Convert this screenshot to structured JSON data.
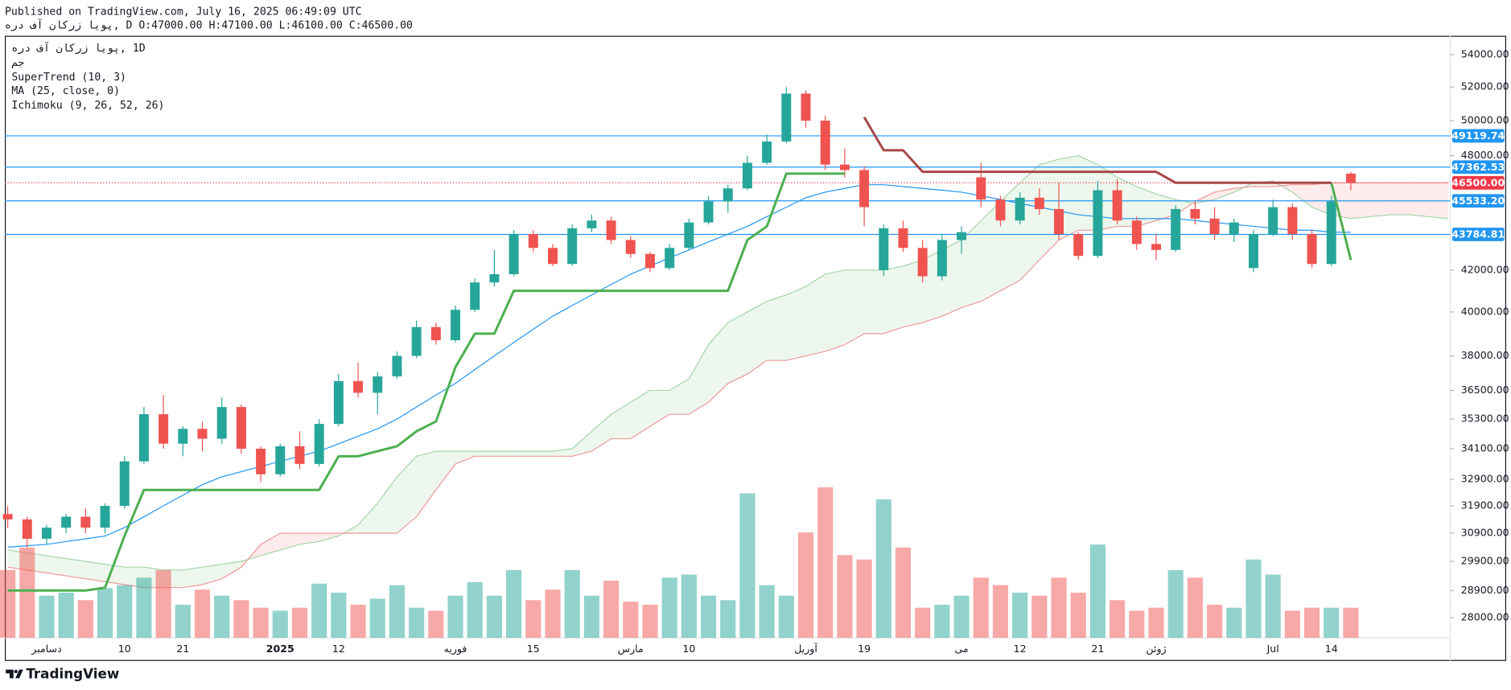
{
  "chart_data": {
    "type": "candlestick",
    "published": "Published on TradingView.com, July 16, 2025 06:49:09 UTC",
    "symbol_line": "هرد فآ ناکرز ایوپ, D O:47000.00 H:47100.00 L:46100.00 C:46500.00",
    "legend": [
      "هرد فآ ناکرز ایوپ, 1D",
      "مج",
      "SuperTrend (10, 3)",
      "MA (25, close, 0)",
      "Ichimoku (9, 26, 52, 26)"
    ],
    "brand": "TradingView",
    "categories": [
      null,
      null,
      "دسامبر",
      null,
      null,
      null,
      "10",
      null,
      null,
      "21",
      null,
      null,
      null,
      null,
      "2025",
      null,
      null,
      "12",
      null,
      null,
      null,
      null,
      null,
      "فوریه",
      null,
      null,
      null,
      "15",
      null,
      null,
      null,
      null,
      "مارس",
      null,
      null,
      "10",
      null,
      null,
      null,
      null,
      null,
      "آوریل",
      null,
      null,
      "19",
      null,
      null,
      null,
      null,
      "می",
      null,
      null,
      "12",
      null,
      null,
      null,
      "21",
      null,
      null,
      "ژوئن",
      null,
      null,
      null,
      null,
      null,
      "Jul",
      null,
      null,
      "14",
      null
    ],
    "open": [
      31600,
      31400,
      30700,
      31100,
      31500,
      31100,
      31900,
      33600,
      35500,
      34300,
      34900,
      34500,
      35800,
      34100,
      33100,
      34200,
      33500,
      35100,
      36900,
      36400,
      37100,
      38000,
      39300,
      38700,
      40100,
      41400,
      41800,
      43800,
      43100,
      42300,
      44100,
      44500,
      43500,
      42800,
      42100,
      43100,
      44400,
      45500,
      46200,
      47600,
      48800,
      51600,
      50000,
      47500,
      47200,
      42000,
      44100,
      43100,
      41700,
      43500,
      46800,
      45600,
      44500,
      45700,
      45100,
      43800,
      42700,
      46100,
      44500,
      43300,
      43000,
      45100,
      44600,
      43800,
      42100,
      43800,
      45200,
      43800,
      42300,
      47000
    ],
    "high": [
      31900,
      31500,
      31200,
      31600,
      31800,
      32000,
      33800,
      35800,
      36300,
      35000,
      35200,
      36200,
      35900,
      34200,
      34300,
      34800,
      35300,
      37200,
      37700,
      37300,
      38200,
      39600,
      39500,
      40300,
      41600,
      43000,
      44000,
      44000,
      43300,
      44300,
      44800,
      44700,
      43700,
      42900,
      43300,
      44600,
      45800,
      46400,
      48000,
      49200,
      52000,
      51800,
      50300,
      48400,
      47400,
      44300,
      44500,
      43500,
      43800,
      44200,
      47600,
      45800,
      46000,
      46200,
      46500,
      43900,
      46600,
      46700,
      44700,
      43800,
      45300,
      45500,
      45200,
      44600,
      44000,
      45600,
      45400,
      44000,
      45800,
      47100
    ],
    "low": [
      31100,
      30400,
      30500,
      30900,
      30900,
      30900,
      31800,
      33500,
      34100,
      33800,
      34000,
      34300,
      33900,
      32800,
      33000,
      33300,
      33400,
      35000,
      36200,
      35500,
      37000,
      37900,
      38500,
      38600,
      40000,
      41200,
      41700,
      42900,
      42200,
      42200,
      43900,
      43300,
      42600,
      41900,
      42000,
      43000,
      44300,
      44900,
      46100,
      47500,
      48700,
      49600,
      47200,
      46800,
      44200,
      41700,
      42900,
      41400,
      41500,
      42800,
      45200,
      44200,
      44300,
      44800,
      43500,
      42500,
      42600,
      44300,
      43000,
      42500,
      42900,
      44300,
      43500,
      43400,
      41900,
      43700,
      43500,
      42100,
      42200,
      46100
    ],
    "close": [
      31400,
      30700,
      31100,
      31500,
      31100,
      31900,
      33600,
      35500,
      34300,
      34900,
      34500,
      35800,
      34100,
      33100,
      34200,
      33500,
      35100,
      36900,
      36400,
      37100,
      38000,
      39300,
      38700,
      40100,
      41400,
      41800,
      43800,
      43100,
      42300,
      44100,
      44500,
      43500,
      42800,
      42100,
      43100,
      44400,
      45500,
      46200,
      47600,
      48800,
      51600,
      50000,
      47500,
      47200,
      45200,
      44100,
      43100,
      41700,
      43500,
      43900,
      45600,
      44500,
      45700,
      45100,
      43800,
      42700,
      46100,
      44500,
      43300,
      43000,
      45100,
      44600,
      43800,
      44400,
      43800,
      45200,
      43800,
      42300,
      45500,
      46500
    ],
    "volume": [
      45,
      60,
      28,
      30,
      25,
      33,
      35,
      40,
      45,
      22,
      32,
      28,
      25,
      20,
      18,
      20,
      36,
      30,
      22,
      26,
      35,
      20,
      18,
      28,
      37,
      28,
      45,
      25,
      32,
      45,
      28,
      38,
      24,
      22,
      40,
      42,
      28,
      25,
      96,
      35,
      28,
      70,
      100,
      55,
      52,
      92,
      60,
      20,
      22,
      28,
      40,
      35,
      30,
      28,
      40,
      30,
      62,
      25,
      18,
      20,
      45,
      40,
      22,
      20,
      52,
      42,
      18,
      20,
      20,
      20
    ],
    "volume_lim": [
      0,
      100
    ],
    "ma": [
      30400,
      30450,
      30500,
      30600,
      30700,
      30800,
      31100,
      31500,
      31900,
      32300,
      32700,
      33000,
      33200,
      33400,
      33600,
      33800,
      34000,
      34300,
      34600,
      34900,
      35300,
      35800,
      36300,
      36800,
      37400,
      38000,
      38600,
      39200,
      39800,
      40300,
      40800,
      41300,
      41800,
      42200,
      42600,
      43000,
      43400,
      43800,
      44200,
      44700,
      45200,
      45700,
      46000,
      46200,
      46400,
      46400,
      46300,
      46200,
      46100,
      46000,
      45800,
      45600,
      45400,
      45200,
      45000,
      44800,
      44700,
      44600,
      44600,
      44600,
      44600,
      44500,
      44400,
      44300,
      44200,
      44100,
      44000,
      44000,
      43900,
      43900
    ],
    "supertrend_up": [
      28900,
      28900,
      28900,
      28900,
      28900,
      29000,
      30800,
      32500,
      32500,
      32500,
      32500,
      32500,
      32500,
      32500,
      32500,
      32500,
      32500,
      33800,
      33800,
      34000,
      34200,
      34800,
      35200,
      37500,
      39000,
      39000,
      41000,
      41000,
      41000,
      41000,
      41000,
      41000,
      41000,
      41000,
      41000,
      41000,
      41000,
      41000,
      43500,
      44200,
      47000,
      47000,
      47000,
      47000,
      null,
      null,
      null,
      null,
      null,
      null,
      null,
      null,
      null,
      null,
      null,
      null,
      null,
      null,
      null,
      null,
      null,
      null,
      null,
      null,
      null,
      null,
      null,
      null,
      46500,
      42500
    ],
    "supertrend_down": [
      null,
      null,
      null,
      null,
      null,
      null,
      null,
      null,
      null,
      null,
      null,
      null,
      null,
      null,
      null,
      null,
      null,
      null,
      null,
      null,
      null,
      null,
      null,
      null,
      null,
      null,
      null,
      null,
      null,
      null,
      null,
      null,
      null,
      null,
      null,
      null,
      null,
      null,
      null,
      null,
      null,
      null,
      null,
      null,
      50200,
      48300,
      48300,
      47100,
      47100,
      47100,
      47100,
      47100,
      47100,
      47100,
      47100,
      47100,
      47100,
      47100,
      47100,
      47100,
      46500,
      46500,
      46500,
      46500,
      46500,
      46500,
      46500,
      46500,
      46500,
      null
    ],
    "span_a": [
      30300,
      30200,
      30100,
      30000,
      29900,
      29800,
      29700,
      29700,
      29600,
      29600,
      29700,
      29800,
      29900,
      30100,
      30300,
      30500,
      30600,
      30800,
      31200,
      32000,
      33000,
      33800,
      34000,
      34000,
      34000,
      34000,
      34000,
      34000,
      34000,
      34100,
      34800,
      35500,
      36000,
      36500,
      36500,
      37000,
      38500,
      39500,
      40000,
      40500,
      40800,
      41200,
      41800,
      42000,
      42000,
      42000,
      42200,
      42500,
      43000,
      43500,
      44500,
      45500,
      46500,
      47500,
      47800,
      48000,
      47500,
      46800,
      46300,
      45900,
      45600,
      45400,
      45600,
      46000,
      46500,
      46600,
      46000,
      45200,
      44800,
      44600,
      44700,
      44800,
      44800,
      44700,
      44600
    ],
    "span_b": [
      29700,
      29600,
      29500,
      29400,
      29300,
      29200,
      29100,
      29000,
      29000,
      29000,
      29100,
      29300,
      29700,
      30500,
      30900,
      30900,
      30900,
      30900,
      30900,
      30900,
      30900,
      31500,
      32500,
      33500,
      33800,
      33800,
      33800,
      33800,
      33800,
      33800,
      34000,
      34500,
      34500,
      35000,
      35500,
      35500,
      36000,
      36800,
      37200,
      37800,
      37800,
      38000,
      38200,
      38500,
      39000,
      39000,
      39300,
      39500,
      39800,
      40200,
      40500,
      41000,
      41500,
      42500,
      43500,
      44000,
      44000,
      44200,
      44200,
      44500,
      44800,
      45500,
      46000,
      46200,
      46300,
      46300,
      46400,
      46400,
      46500,
      46500,
      46500,
      46500,
      46500,
      46500,
      46500
    ],
    "levels": [
      49119.74,
      47362.53,
      {
        "value": 45533.2,
        "label": "45533.20"
      },
      43784.81
    ],
    "last": {
      "value": 46500,
      "label": "46500.00"
    },
    "log_scale": true,
    "grid": false,
    "ylim": [
      27350,
      55200
    ],
    "yticks": [
      {
        "value": 54000,
        "label": "54000.00"
      },
      {
        "value": 52000,
        "label": "52000.00"
      },
      {
        "value": 50000,
        "label": "50000.00"
      },
      {
        "value": 48000,
        "label": "48000.00"
      },
      {
        "value": 42000,
        "label": "42000.00"
      },
      {
        "value": 40000,
        "label": "40000.00"
      },
      {
        "value": 38000,
        "label": "38000.00"
      },
      {
        "value": 36500,
        "label": "36500.00"
      },
      {
        "value": 35300,
        "label": "35300.00"
      },
      {
        "value": 34100,
        "label": "34100.00"
      },
      {
        "value": 32900,
        "label": "32900.00"
      },
      {
        "value": 31900,
        "label": "31900.00"
      },
      {
        "value": 30900,
        "label": "30900.00"
      },
      {
        "value": 29900,
        "label": "29900.00"
      },
      {
        "value": 28900,
        "label": "28900.00"
      },
      {
        "value": 28000,
        "label": "28000.00"
      }
    ],
    "up_color": "#26a69a",
    "down_color": "#ef5350",
    "ma_color": "#2196f3",
    "supertrend_up_color": "#4caf50",
    "supertrend_down_color": "#a84848",
    "span_a_color": "#a5d6a7",
    "span_b_color": "#ef9a9a",
    "level_color": "#2196f3",
    "last_color": "#f23645"
  }
}
